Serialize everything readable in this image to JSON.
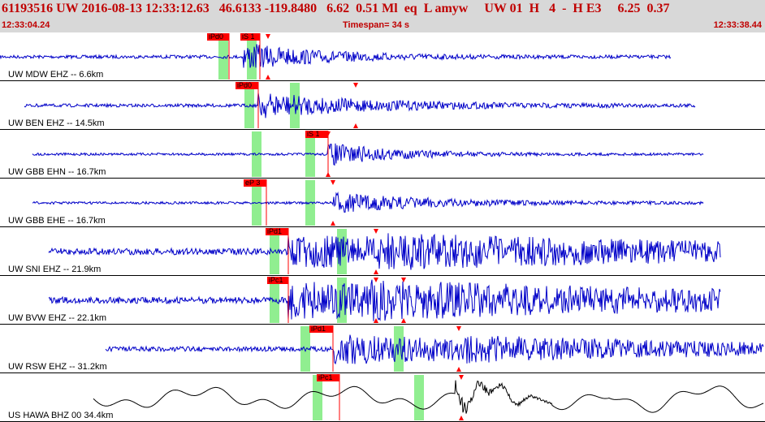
{
  "header": {
    "event_line": "61193516 UW 2016-08-13 12:33:12.63   46.6133 -119.8480   6.62  0.51 Ml  eq  L amyw     UW 01  H   4  -  H E3     6.25  0.37",
    "start_time": "12:33:04.24",
    "timespan": "Timespan=  34 s",
    "end_time": "12:33:38.44"
  },
  "colors": {
    "trace": "#0000c8",
    "trace_last": "#000000",
    "pick": "#ff0000",
    "window": "#90ee90",
    "header_text": "#c00000"
  },
  "traces": [
    {
      "label": "UW MDW EHZ -- 6.6km",
      "picks": [
        {
          "label": "iPd0"
        },
        {
          "label": "iS 1"
        }
      ]
    },
    {
      "label": "UW BEN EHZ -- 14.5km",
      "picks": [
        {
          "label": "iPd0"
        }
      ]
    },
    {
      "label": "UW GBB EHN -- 16.7km",
      "picks": [
        {
          "label": "iS 1"
        }
      ]
    },
    {
      "label": "UW GBB EHE -- 16.7km",
      "picks": [
        {
          "label": "eP 3"
        }
      ]
    },
    {
      "label": "UW SNI EHZ -- 21.9km",
      "picks": [
        {
          "label": "iPd1"
        }
      ]
    },
    {
      "label": "UW BVW EHZ -- 22.1km",
      "picks": [
        {
          "label": "iPc1"
        }
      ]
    },
    {
      "label": "UW RSW EHZ -- 31.2km",
      "picks": [
        {
          "label": "iPd1"
        }
      ]
    },
    {
      "label": "US HAWA BHZ 00 34.4km",
      "picks": [
        {
          "label": "iPc1"
        }
      ]
    }
  ]
}
